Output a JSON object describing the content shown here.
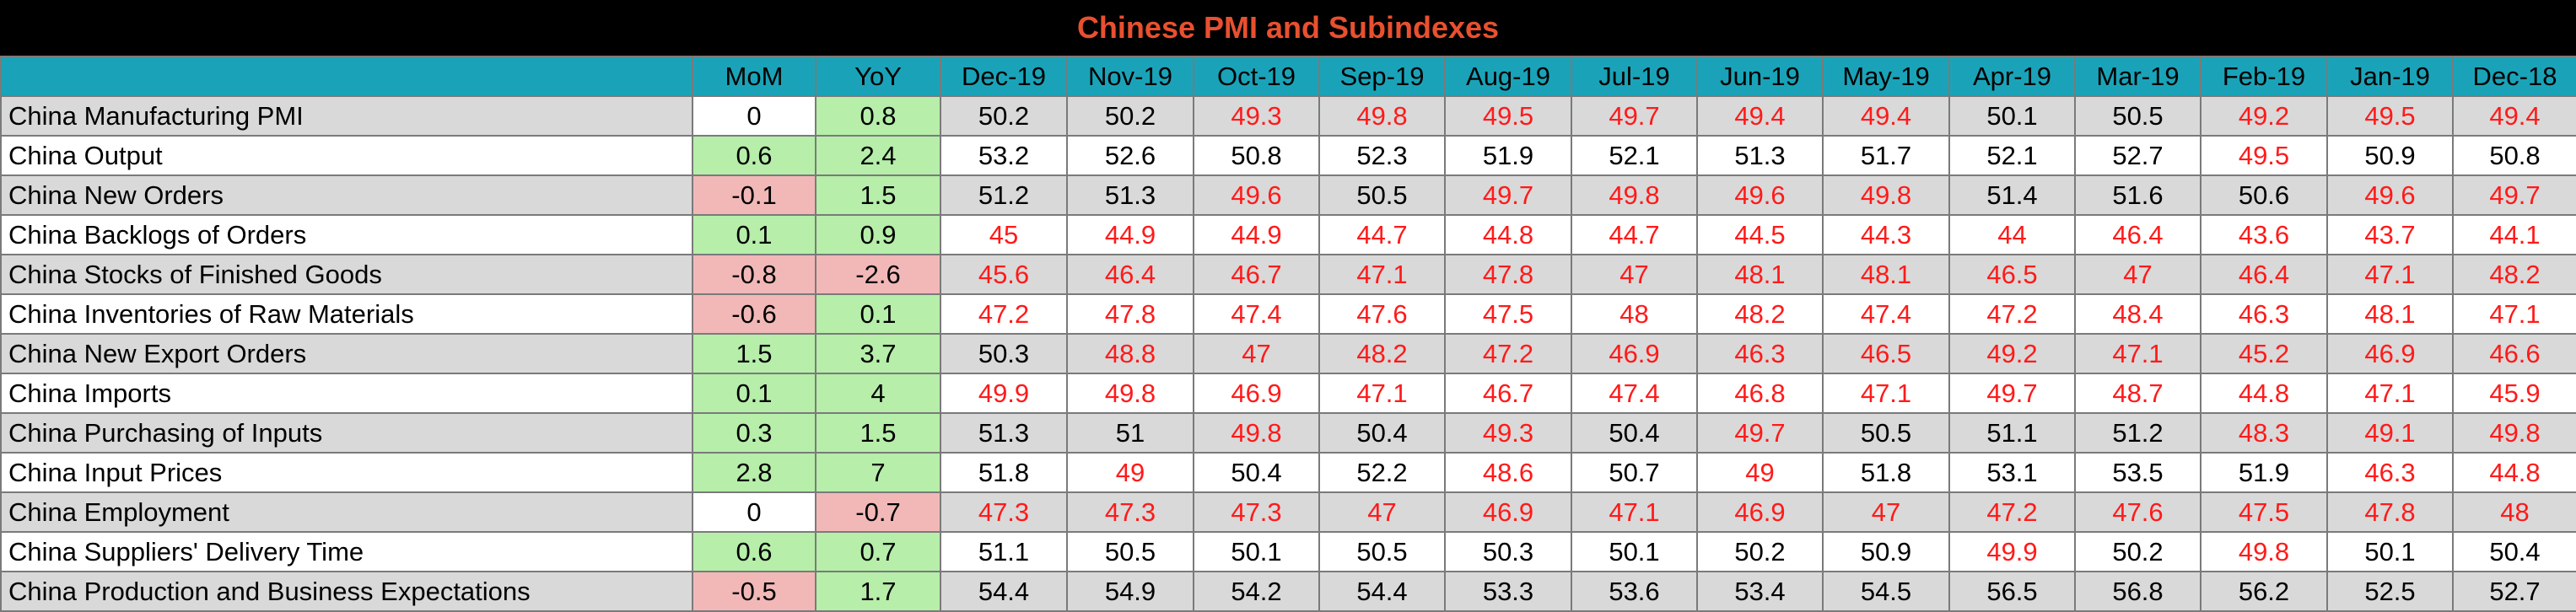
{
  "chart_data": {
    "type": "table",
    "title": "Chinese PMI and Subindexes",
    "columns": [
      "",
      "MoM",
      "YoY",
      "Dec-19",
      "Nov-19",
      "Oct-19",
      "Sep-19",
      "Aug-19",
      "Jul-19",
      "Jun-19",
      "May-19",
      "Apr-19",
      "Mar-19",
      "Feb-19",
      "Jan-19",
      "Dec-18"
    ],
    "rows": [
      {
        "label": "China Manufacturing PMI",
        "mom": "0",
        "yoy": "0.8",
        "values": [
          "50.2",
          "50.2",
          "49.3",
          "49.8",
          "49.5",
          "49.7",
          "49.4",
          "49.4",
          "50.1",
          "50.5",
          "49.2",
          "49.5",
          "49.4"
        ]
      },
      {
        "label": "China Output",
        "mom": "0.6",
        "yoy": "2.4",
        "values": [
          "53.2",
          "52.6",
          "50.8",
          "52.3",
          "51.9",
          "52.1",
          "51.3",
          "51.7",
          "52.1",
          "52.7",
          "49.5",
          "50.9",
          "50.8"
        ]
      },
      {
        "label": "China New Orders",
        "mom": "-0.1",
        "yoy": "1.5",
        "values": [
          "51.2",
          "51.3",
          "49.6",
          "50.5",
          "49.7",
          "49.8",
          "49.6",
          "49.8",
          "51.4",
          "51.6",
          "50.6",
          "49.6",
          "49.7"
        ]
      },
      {
        "label": "China Backlogs of Orders",
        "mom": "0.1",
        "yoy": "0.9",
        "values": [
          "45",
          "44.9",
          "44.9",
          "44.7",
          "44.8",
          "44.7",
          "44.5",
          "44.3",
          "44",
          "46.4",
          "43.6",
          "43.7",
          "44.1"
        ]
      },
      {
        "label": "China Stocks of Finished Goods",
        "mom": "-0.8",
        "yoy": "-2.6",
        "values": [
          "45.6",
          "46.4",
          "46.7",
          "47.1",
          "47.8",
          "47",
          "48.1",
          "48.1",
          "46.5",
          "47",
          "46.4",
          "47.1",
          "48.2"
        ]
      },
      {
        "label": "China Inventories of Raw Materials",
        "mom": "-0.6",
        "yoy": "0.1",
        "values": [
          "47.2",
          "47.8",
          "47.4",
          "47.6",
          "47.5",
          "48",
          "48.2",
          "47.4",
          "47.2",
          "48.4",
          "46.3",
          "48.1",
          "47.1"
        ]
      },
      {
        "label": "China New Export Orders",
        "mom": "1.5",
        "yoy": "3.7",
        "values": [
          "50.3",
          "48.8",
          "47",
          "48.2",
          "47.2",
          "46.9",
          "46.3",
          "46.5",
          "49.2",
          "47.1",
          "45.2",
          "46.9",
          "46.6"
        ]
      },
      {
        "label": "China Imports",
        "mom": "0.1",
        "yoy": "4",
        "values": [
          "49.9",
          "49.8",
          "46.9",
          "47.1",
          "46.7",
          "47.4",
          "46.8",
          "47.1",
          "49.7",
          "48.7",
          "44.8",
          "47.1",
          "45.9"
        ]
      },
      {
        "label": "China Purchasing of Inputs",
        "mom": "0.3",
        "yoy": "1.5",
        "values": [
          "51.3",
          "51",
          "49.8",
          "50.4",
          "49.3",
          "50.4",
          "49.7",
          "50.5",
          "51.1",
          "51.2",
          "48.3",
          "49.1",
          "49.8"
        ]
      },
      {
        "label": "China Input Prices",
        "mom": "2.8",
        "yoy": "7",
        "values": [
          "51.8",
          "49",
          "50.4",
          "52.2",
          "48.6",
          "50.7",
          "49",
          "51.8",
          "53.1",
          "53.5",
          "51.9",
          "46.3",
          "44.8"
        ]
      },
      {
        "label": "China Employment",
        "mom": "0",
        "yoy": "-0.7",
        "values": [
          "47.3",
          "47.3",
          "47.3",
          "47",
          "46.9",
          "47.1",
          "46.9",
          "47",
          "47.2",
          "47.6",
          "47.5",
          "47.8",
          "48"
        ]
      },
      {
        "label": "China Suppliers' Delivery Time",
        "mom": "0.6",
        "yoy": "0.7",
        "values": [
          "51.1",
          "50.5",
          "50.1",
          "50.5",
          "50.3",
          "50.1",
          "50.2",
          "50.9",
          "49.9",
          "50.2",
          "49.8",
          "50.1",
          "50.4"
        ]
      },
      {
        "label": "China Production and Business Expectations",
        "mom": "-0.5",
        "yoy": "1.7",
        "values": [
          "54.4",
          "54.9",
          "54.2",
          "54.4",
          "53.3",
          "53.6",
          "53.4",
          "54.5",
          "56.5",
          "56.8",
          "56.2",
          "52.5",
          "52.7"
        ]
      }
    ],
    "colors": {
      "title_bg": "#000000",
      "title_text": "#e8502f",
      "header_bg": "#1aa3b8",
      "positive_change": "#b6eeaa",
      "negative_change": "#f2b8b8",
      "below_50_text": "#ff1a1a",
      "shaded_row": "#d9d9d9"
    }
  }
}
